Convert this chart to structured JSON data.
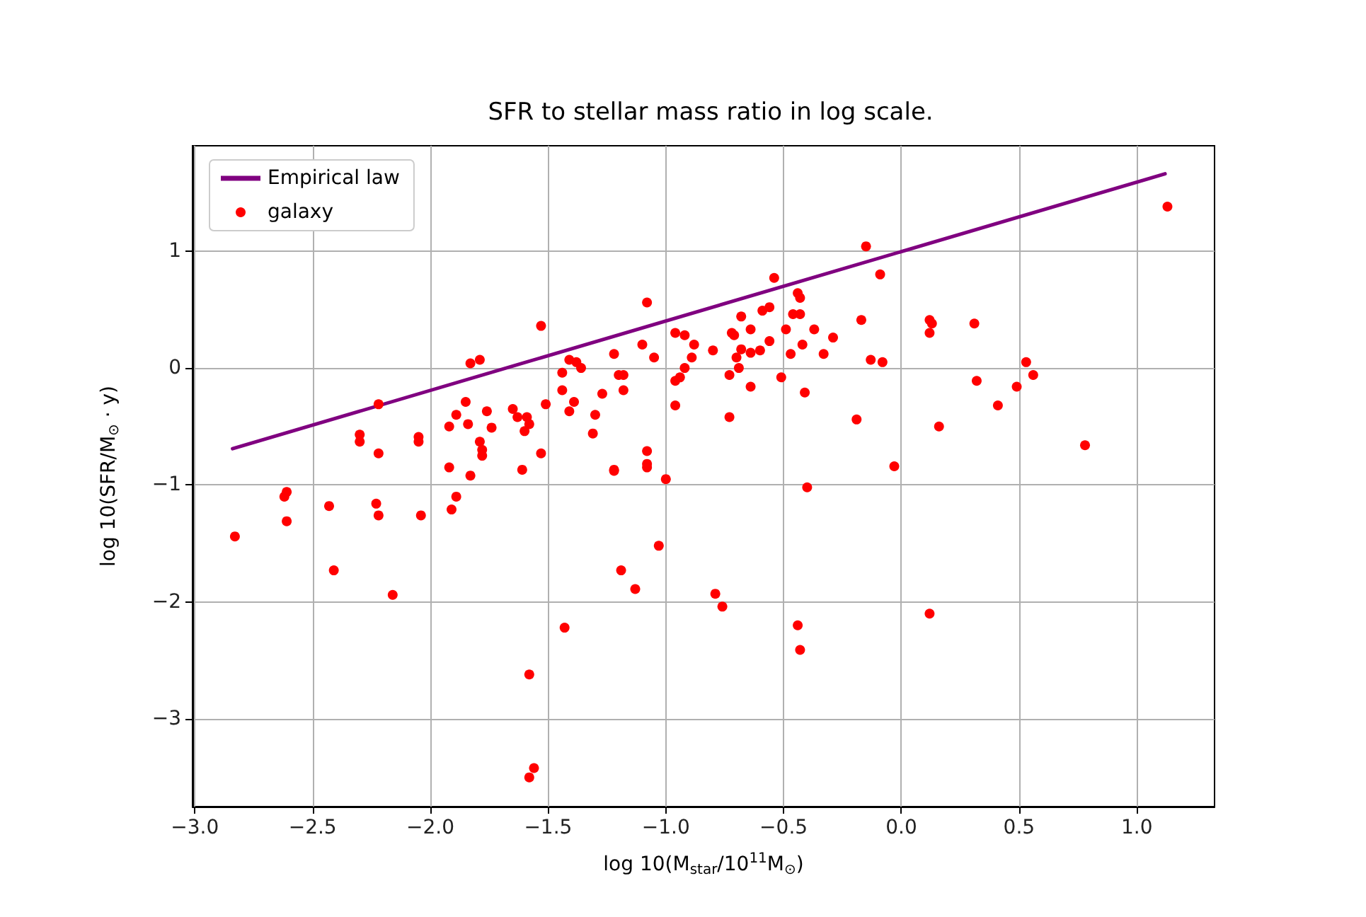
{
  "chart_data": {
    "type": "scatter",
    "title": "SFR to stellar mass ratio in log scale.",
    "xlabel": "log 10(M$_{star}$/10$^{11}$M$_{⊙}$)",
    "ylabel": "log 10(SFR/M$_{⊙}$ · y)",
    "xlim": [
      -3.01,
      1.33
    ],
    "ylim": [
      -3.75,
      1.9
    ],
    "xticks": [
      {
        "value": -3,
        "label": "−3.0"
      },
      {
        "value": -2.5,
        "label": "−2.5"
      },
      {
        "value": -2,
        "label": "−2.0"
      },
      {
        "value": -1.5,
        "label": "−1.5"
      },
      {
        "value": -1,
        "label": "−1.0"
      },
      {
        "value": -0.5,
        "label": "−0.5"
      },
      {
        "value": 0,
        "label": "0.0"
      },
      {
        "value": 0.5,
        "label": "0.5"
      },
      {
        "value": 1,
        "label": "1.0"
      }
    ],
    "yticks": [
      {
        "value": -3,
        "label": "−3"
      },
      {
        "value": -2,
        "label": "−2"
      },
      {
        "value": -1,
        "label": "−1"
      },
      0,
      1
    ],
    "grid": true,
    "legend": "top left",
    "series": [
      {
        "name": "Empirical law",
        "type": "line",
        "color": "#800080",
        "marker": "none",
        "line_style": "solid",
        "x": [
          -2.84,
          1.12
        ],
        "values": [
          -0.69,
          1.66
        ]
      },
      {
        "name": "galaxy",
        "type": "scatter",
        "color": "#ff0000",
        "marker": "circle",
        "x": [
          -2.83,
          -2.61,
          -2.62,
          -2.61,
          -2.43,
          -2.41,
          -2.23,
          -2.22,
          -2.22,
          -2.3,
          -2.3,
          -2.22,
          -2.16,
          -2.05,
          -2.05,
          -2.04,
          -1.83,
          -1.79,
          -1.85,
          -1.89,
          -1.92,
          -1.84,
          -1.76,
          -1.74,
          -1.79,
          -1.78,
          -1.78,
          -1.92,
          -1.83,
          -1.89,
          -1.91,
          -1.65,
          -1.63,
          -1.59,
          -1.58,
          -1.6,
          -1.61,
          -1.43,
          -1.58,
          -1.56,
          -1.58,
          -1.22,
          -1.08,
          -1.0,
          -1.03,
          -1.19,
          -1.13,
          -1.08,
          -1.53,
          -0.54,
          -0.44,
          -0.43,
          -0.46,
          -0.43,
          -0.59,
          -0.56,
          -0.68,
          -0.72,
          -0.71,
          -0.64,
          -0.56,
          -0.49,
          -0.37,
          -0.29,
          -0.42,
          -0.33,
          -0.47,
          -0.68,
          -0.6,
          -0.64,
          -0.7,
          -0.69,
          -0.73,
          -0.64,
          -0.51,
          -0.41,
          -0.73,
          -0.19,
          -0.4,
          -0.15,
          -0.17,
          -0.96,
          -0.92,
          -0.88,
          -1.1,
          -1.22,
          -1.05,
          -0.89,
          -0.8,
          -1.41,
          -1.38,
          -1.36,
          -1.44,
          -0.92,
          -0.94,
          -0.96,
          -1.2,
          -1.18,
          -1.18,
          -1.27,
          -1.44,
          -1.39,
          -1.41,
          -1.51,
          -1.3,
          -1.31,
          -0.96,
          -1.53,
          -1.08,
          -1.08,
          -1.22,
          -0.09,
          0.12,
          0.13,
          0.12,
          0.31,
          -0.13,
          -0.08,
          0.53,
          0.56,
          0.32,
          0.49,
          0.41,
          0.16,
          0.78,
          -0.03,
          1.13,
          -0.79,
          -0.76,
          -0.44,
          -0.43,
          0.12
        ],
        "values": [
          -1.44,
          -1.06,
          -1.1,
          -1.31,
          -1.18,
          -1.73,
          -1.16,
          -1.26,
          -0.31,
          -0.57,
          -0.63,
          -0.73,
          -1.94,
          -0.59,
          -0.63,
          -1.26,
          0.04,
          0.07,
          -0.29,
          -0.4,
          -0.5,
          -0.48,
          -0.37,
          -0.51,
          -0.63,
          -0.7,
          -0.75,
          -0.85,
          -0.92,
          -1.1,
          -1.21,
          -0.35,
          -0.42,
          -0.42,
          -0.48,
          -0.54,
          -0.87,
          -2.22,
          -2.62,
          -3.42,
          -3.5,
          -0.88,
          -0.85,
          -0.95,
          -1.52,
          -1.73,
          -1.89,
          0.56,
          0.36,
          0.77,
          0.64,
          0.6,
          0.46,
          0.46,
          0.49,
          0.52,
          0.44,
          0.3,
          0.28,
          0.33,
          0.23,
          0.33,
          0.33,
          0.26,
          0.2,
          0.12,
          0.12,
          0.16,
          0.15,
          0.13,
          0.09,
          0.0,
          -0.06,
          -0.16,
          -0.08,
          -0.21,
          -0.42,
          -0.44,
          -1.02,
          1.04,
          0.41,
          0.3,
          0.28,
          0.2,
          0.2,
          0.12,
          0.09,
          0.09,
          0.15,
          0.07,
          0.05,
          0.0,
          -0.04,
          0.0,
          -0.08,
          -0.11,
          -0.06,
          -0.06,
          -0.19,
          -0.22,
          -0.19,
          -0.29,
          -0.37,
          -0.31,
          -0.4,
          -0.56,
          -0.32,
          -0.73,
          -0.71,
          -0.82,
          -0.87,
          0.8,
          0.41,
          0.38,
          0.3,
          0.38,
          0.07,
          0.05,
          0.05,
          -0.06,
          -0.11,
          -0.16,
          -0.32,
          -0.5,
          -0.66,
          -0.84,
          1.38,
          -1.93,
          -2.04,
          -2.2,
          -2.41,
          -2.1
        ]
      }
    ]
  }
}
